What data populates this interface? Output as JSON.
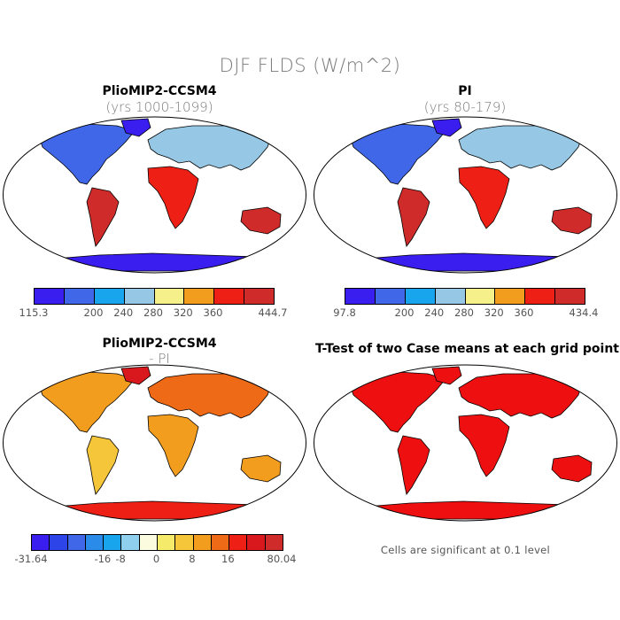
{
  "figure_title": "DJF FLDS (W/m^2)",
  "panels": {
    "top_left": {
      "title": "PlioMIP2-CCSM4",
      "subtitle": "(yrs 1000-1099)",
      "colorbar": {
        "colors": [
          "#3a1ef0",
          "#3f67e8",
          "#19a4ee",
          "#96c8e6",
          "#f6f08a",
          "#f39d1f",
          "#ee2015",
          "#cf2b2b"
        ],
        "labels": [
          "115.3",
          "200",
          "240",
          "280",
          "320",
          "360",
          "444.7"
        ]
      }
    },
    "top_right": {
      "title": "PI",
      "subtitle": "(yrs 80-179)",
      "colorbar": {
        "colors": [
          "#3a1ef0",
          "#3f67e8",
          "#19a4ee",
          "#96c8e6",
          "#f6f08a",
          "#f39d1f",
          "#ee2015",
          "#cf2b2b"
        ],
        "labels": [
          "97.8",
          "200",
          "240",
          "280",
          "320",
          "360",
          "434.4"
        ]
      }
    },
    "bottom_left": {
      "title": "PlioMIP2-CCSM4",
      "subtitle": "- PI",
      "colorbar": {
        "colors": [
          "#3a1ef0",
          "#2c44e8",
          "#3f67e8",
          "#2a8be8",
          "#19a4ee",
          "#8fd0ee",
          "#fbfbe0",
          "#f6ea6a",
          "#f5c63a",
          "#f39d1f",
          "#ef6a17",
          "#ee2015",
          "#d8181c",
          "#cf2b2b"
        ],
        "labels": [
          "-31.64",
          "-16",
          "-8",
          "0",
          "8",
          "16",
          "80.04"
        ]
      }
    },
    "bottom_right": {
      "title": "T-Test of two Case means at each grid point",
      "note": "Cells are significant at 0.1 level",
      "fill_color": "#ee1010"
    }
  }
}
